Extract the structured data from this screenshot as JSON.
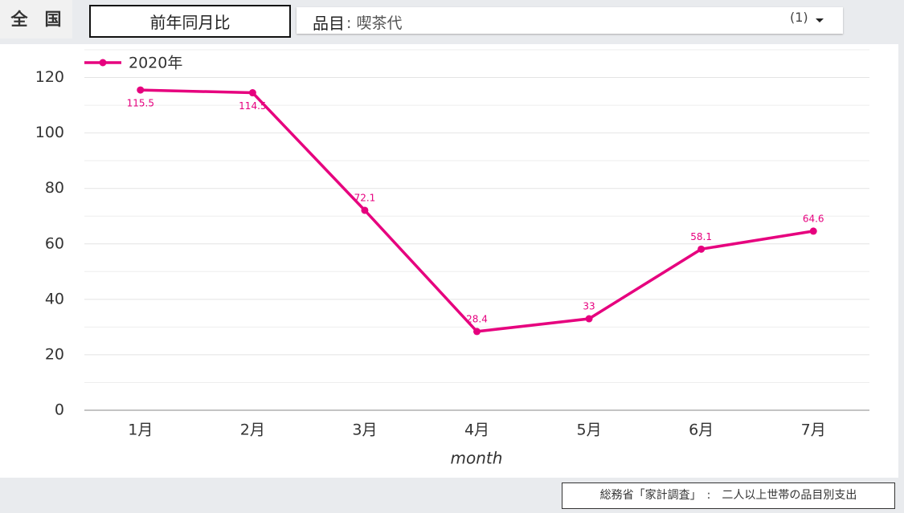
{
  "header": {
    "region": "全　国",
    "button": "前年同月比",
    "filter_label": "品目",
    "filter_value": ": 喫茶代",
    "filter_count": "(1)"
  },
  "chart_data": {
    "type": "line",
    "x_label": "month",
    "categories": [
      "1月",
      "2月",
      "3月",
      "4月",
      "5月",
      "6月",
      "7月"
    ],
    "series": [
      {
        "name": "2020年",
        "color": "#e6007e",
        "values": [
          115.5,
          114.5,
          72.1,
          28.4,
          33,
          58.1,
          64.6
        ]
      }
    ],
    "ylim": [
      0,
      130
    ],
    "yticks": [
      0,
      20,
      40,
      60,
      80,
      100,
      120
    ],
    "y_minor_ticks": [
      10,
      30,
      50,
      70,
      90,
      110,
      130
    ],
    "grid": true,
    "legend": "top-left"
  },
  "footer": "総務省「家計調査」　:　二人以上世帯の品目別支出"
}
